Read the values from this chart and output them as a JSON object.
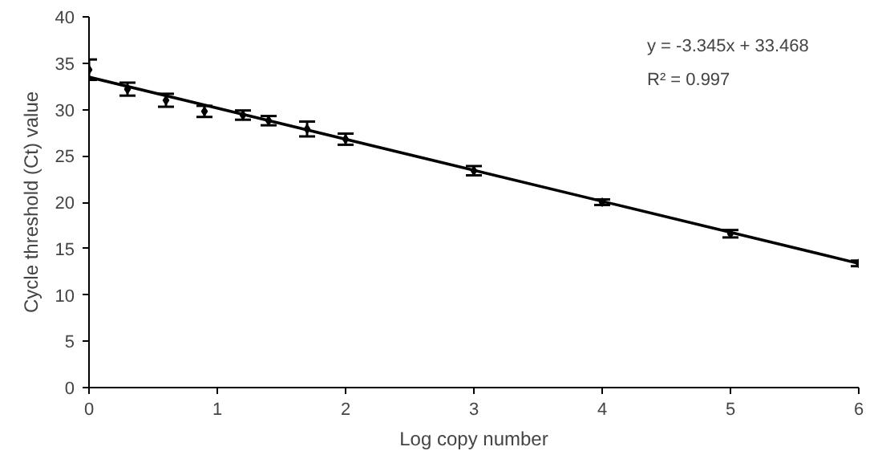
{
  "chart_data": {
    "type": "scatter",
    "xlabel": "Log copy number",
    "ylabel": "Cycle threshold (Ct) value",
    "xlim": [
      0,
      6
    ],
    "ylim": [
      0,
      40
    ],
    "xticks": [
      0,
      1,
      2,
      3,
      4,
      5,
      6
    ],
    "yticks": [
      0,
      5,
      10,
      15,
      20,
      25,
      30,
      35,
      40
    ],
    "grid": false,
    "annotations": [
      "y = -3.345x + 33.468",
      "R² = 0.997"
    ],
    "series": [
      {
        "color": "#000000",
        "marker": "diamond",
        "x": [
          0,
          0.3,
          0.6,
          0.9,
          1.2,
          1.4,
          1.7,
          2,
          3,
          4,
          5,
          6
        ],
        "values": [
          34.3,
          32.2,
          31.0,
          29.8,
          29.4,
          28.8,
          27.9,
          26.8,
          23.4,
          20.0,
          16.6,
          13.4
        ],
        "errors": [
          1.1,
          0.7,
          0.7,
          0.6,
          0.5,
          0.5,
          0.8,
          0.6,
          0.5,
          0.3,
          0.4,
          0.3
        ]
      },
      {
        "type": "line",
        "color": "#000000",
        "line_style": "solid",
        "x": [
          0,
          6
        ],
        "values": [
          33.5,
          13.4
        ]
      }
    ]
  }
}
